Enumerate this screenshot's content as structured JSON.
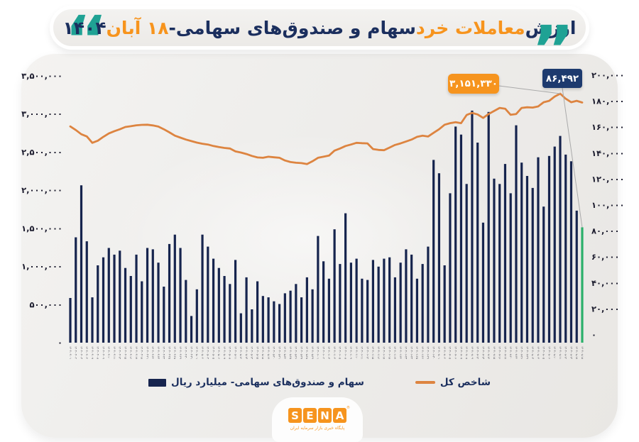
{
  "header": {
    "title_parts": [
      {
        "text": "ارزش ",
        "color": "#1b2f5e"
      },
      {
        "text": "معاملات خرد ",
        "color": "#f7941d"
      },
      {
        "text": "سهام و صندوق‌های سهامی- ",
        "color": "#1b2f5e"
      },
      {
        "text": "۱۸ آبان ",
        "color": "#f7941d"
      },
      {
        "text": "۱۴۰۴",
        "color": "#1b2f5e"
      }
    ],
    "open_quote": "“",
    "close_quote": "”"
  },
  "left_axis": {
    "labels": [
      "۳,۵۰۰,۰۰۰",
      "۳,۰۰۰,۰۰۰",
      "۲,۵۰۰,۰۰۰",
      "۲,۰۰۰,۰۰۰",
      "۱,۵۰۰,۰۰۰",
      "۱,۰۰۰,۰۰۰",
      "۵۰۰,۰۰۰",
      "۰"
    ]
  },
  "right_axis": {
    "labels": [
      "۲۰۰,۰۰۰",
      "۱۸۰,۰۰۰",
      "۱۶۰,۰۰۰",
      "۱۴۰,۰۰۰",
      "۱۲۰,۰۰۰",
      "۱۰۰,۰۰۰",
      "۸۰,۰۰۰",
      "۶۰,۰۰۰",
      "۴۰,۰۰۰",
      "۲۰,۰۰۰",
      "۰"
    ]
  },
  "legend": {
    "bars_label": "سهام و صندوق‌های سهامی-  میلیارد ریال",
    "line_label": "شاخص کل"
  },
  "annotations": {
    "index_label": "۳,۱۵۱,۳۳۰",
    "trade_label": "۸۶,۴۹۲"
  },
  "footer": {
    "logo_letters": [
      "S",
      "E",
      "N",
      "A"
    ],
    "reg_mark": "®",
    "tagline": "پایگاه خبری بازار سرمایه ایران"
  },
  "colors": {
    "bar": "#16244e",
    "bar_highlight": "#2ab06a",
    "line": "#dd8440",
    "axis_text": "#1c1c2e",
    "xlabel_text": "#45454f",
    "connector": "#aaaaaa",
    "accent_orange": "#f6941e",
    "accent_navy": "#1d3a6e",
    "accent_teal": "#1fa294"
  },
  "chart_data": {
    "type": "combo",
    "title": "ارزش معاملات خرد سهام و صندوق‌های سهامی- ۱۸ آبان ۱۴۰۴",
    "grid": false,
    "legend_position": "bottom",
    "left_axis": {
      "min": 0,
      "max": 3500000,
      "step": 500000,
      "series": "شاخص کل"
    },
    "right_axis": {
      "min": 0,
      "max": 200000,
      "step": 20000,
      "series": "سهام و صندوق‌های سهامی- میلیارد ریال"
    },
    "categories": [
      "۱۴۰۴-۰۴-۰۱",
      "۱۴۰۴-۰۴-۰۲",
      "۱۴۰۴-۰۴-۰۳",
      "۱۴۰۴-۰۴-۰۴",
      "۱۴۰۴-۰۴-۰۷",
      "۱۴۰۴-۰۴-۰۸",
      "۱۴۰۴-۰۴-۰۹",
      "۱۴۰۴-۰۴-۱۰",
      "۱۴۰۴-۰۴-۱۱",
      "۱۴۰۴-۰۴-۱۴",
      "۱۴۰۴-۰۴-۱۵",
      "۱۴۰۴-۰۴-۱۶",
      "۱۴۰۴-۰۴-۱۷",
      "۱۴۰۴-۰۴-۱۸",
      "۱۴۰۴-۰۴-۲۱",
      "۱۴۰۴-۰۴-۲۲",
      "۱۴۰۴-۰۴-۲۳",
      "۱۴۰۴-۰۴-۲۴",
      "۱۴۰۴-۰۴-۲۵",
      "۱۴۰۴-۰۴-۲۸",
      "۱۴۰۴-۰۴-۲۹",
      "۱۴۰۴-۰۴-۳۰",
      "۱۴۰۴-۰۴-۳۱",
      "۱۴۰۴-۰۵-۰۱",
      "۱۴۰۴-۰۵-۰۲",
      "۱۴۰۴-۰۵-۰۴",
      "۱۴۰۴-۰۵-۰۵",
      "۱۴۰۴-۰۵-۰۶",
      "۱۴۰۴-۰۵-۰۷",
      "۱۴۰۴-۰۵-۰۸",
      "۱۴۰۴-۰۵-۱۱",
      "۱۴۰۴-۰۵-۱۲",
      "۱۴۰۴-۰۵-۱۳",
      "۱۴۰۴-۰۵-۱۴",
      "۱۴۰۴-۰۵-۱۵",
      "۱۴۰۴-۰۵-۱۸",
      "۱۴۰۴-۰۵-۱۹",
      "۱۴۰۴-۰۵-۲۰",
      "۱۴۰۴-۰۵-۲۱",
      "۱۴۰۴-۰۵-۲۲",
      "۱۴۰۴-۰۵-۲۵",
      "۱۴۰۴-۰۵-۲۶",
      "۱۴۰۴-۰۵-۲۷",
      "۱۴۰۴-۰۵-۲۸",
      "۱۴۰۴-۰۵-۲۹",
      "۱۴۰۴-۰۶-۰۱",
      "۱۴۰۴-۰۶-۰۲",
      "۱۴۰۴-۰۶-۰۳",
      "۱۴۰۴-۰۶-۰۴",
      "۱۴۰۴-۰۶-۰۵",
      "۱۴۰۴-۰۶-۰۸",
      "۱۴۰۴-۰۶-۰۹",
      "۱۴۰۴-۰۶-۱۰",
      "۱۴۰۴-۰۶-۱۱",
      "۱۴۰۴-۰۶-۱۲",
      "۱۴۰۴-۰۶-۱۵",
      "۱۴۰۴-۰۶-۱۶",
      "۱۴۰۴-۰۶-۱۷",
      "۱۴۰۴-۰۶-۱۸",
      "۱۴۰۴-۰۶-۱۹",
      "۱۴۰۴-۰۶-۲۲",
      "۱۴۰۴-۰۶-۲۳",
      "۱۴۰۴-۰۶-۲۴",
      "۱۴۰۴-۰۶-۲۵",
      "۱۴۰۴-۰۶-۲۶",
      "۱۴۰۴-۰۶-۲۹",
      "۱۴۰۴-۰۶-۳۰",
      "۱۴۰۴-۰۷-۰۱",
      "۱۴۰۴-۰۷-۰۲",
      "۱۴۰۴-۰۷-۰۵",
      "۱۴۰۴-۰۷-۰۶",
      "۱۴۰۴-۰۷-۰۷",
      "۱۴۰۴-۰۷-۰۸",
      "۱۴۰۴-۰۷-۰۹",
      "۱۴۰۴-۰۷-۱۲",
      "۱۴۰۴-۰۷-۱۳",
      "۱۴۰۴-۰۷-۱۴",
      "۱۴۰۴-۰۷-۱۵",
      "۱۴۰۴-۰۷-۱۶",
      "۱۴۰۴-۰۷-۱۹",
      "۱۴۰۴-۰۷-۲۰",
      "۱۴۰۴-۰۷-۲۲",
      "۱۴۰۴-۰۷-۲۶",
      "۱۴۰۴-۰۷-۲۹",
      "۱۴۰۴-۰۸-۰۳",
      "۱۴۰۴-۰۸-۰۴",
      "۱۴۰۴-۰۸-۰۵",
      "۱۴۰۴-۰۸-۰۶",
      "۱۴۰۴-۰۸-۱۰",
      "۱۴۰۴-۰۸-۱۱",
      "۱۴۰۴-۰۸-۱۲",
      "۱۴۰۴-۰۸-۱۴",
      "۱۴۰۴-۰۸-۱۷",
      "۱۴۰۴-۰۸-۱۸"
    ],
    "series": [
      {
        "name": "سهام و صندوق‌های سهامی- میلیارد ریال",
        "type": "bar",
        "axis": "right",
        "highlight_last": true,
        "values": [
          33500,
          79000,
          118000,
          76000,
          34000,
          58000,
          64000,
          71000,
          66000,
          69000,
          56000,
          50000,
          66000,
          46000,
          71000,
          70000,
          60000,
          42000,
          74000,
          81000,
          71000,
          47000,
          20000,
          40000,
          81000,
          72000,
          63000,
          56000,
          50000,
          44000,
          62000,
          22000,
          49000,
          25000,
          46000,
          35000,
          34000,
          31000,
          29000,
          37000,
          39000,
          44000,
          34000,
          49000,
          40000,
          80000,
          61000,
          48000,
          85000,
          59000,
          97000,
          60000,
          63000,
          48000,
          47000,
          62000,
          57000,
          63000,
          64000,
          49000,
          60000,
          70000,
          66000,
          48000,
          59000,
          72000,
          137000,
          127000,
          58000,
          112000,
          162000,
          156000,
          119000,
          174000,
          150000,
          90000,
          173000,
          123000,
          119000,
          134000,
          112000,
          163000,
          135000,
          125000,
          116000,
          139000,
          102000,
          140000,
          147000,
          155000,
          141000,
          136000,
          99000,
          86492
        ]
      },
      {
        "name": "شاخص کل",
        "type": "line",
        "axis": "left",
        "values": [
          2837000,
          2790000,
          2735000,
          2706000,
          2622000,
          2650000,
          2700000,
          2745000,
          2775000,
          2800000,
          2830000,
          2840000,
          2852000,
          2858000,
          2860000,
          2850000,
          2835000,
          2800000,
          2760000,
          2716000,
          2690000,
          2665000,
          2645000,
          2625000,
          2610000,
          2600000,
          2580000,
          2566000,
          2555000,
          2548000,
          2510000,
          2495000,
          2475000,
          2450000,
          2430000,
          2426000,
          2440000,
          2432000,
          2426000,
          2390000,
          2370000,
          2361000,
          2356000,
          2343000,
          2380000,
          2426000,
          2440000,
          2455000,
          2520000,
          2548000,
          2580000,
          2600000,
          2622000,
          2618000,
          2615000,
          2540000,
          2529000,
          2525000,
          2560000,
          2594000,
          2615000,
          2640000,
          2665000,
          2700000,
          2716000,
          2705000,
          2753000,
          2800000,
          2860000,
          2880000,
          2893000,
          2880000,
          2987000,
          3015000,
          2995000,
          2949000,
          3000000,
          3040000,
          3080000,
          3070000,
          2990000,
          3000000,
          3080000,
          3089000,
          3085000,
          3100000,
          3155000,
          3173000,
          3229000,
          3267000,
          3201000,
          3155000,
          3173000,
          3151330
        ]
      }
    ],
    "annotations": [
      {
        "target": "line-peak",
        "label": "۳,۱۵۱,۳۳۰",
        "value": 3151330
      },
      {
        "target": "bar-last",
        "label": "۸۶,۴۹۲",
        "value": 86492
      }
    ]
  }
}
